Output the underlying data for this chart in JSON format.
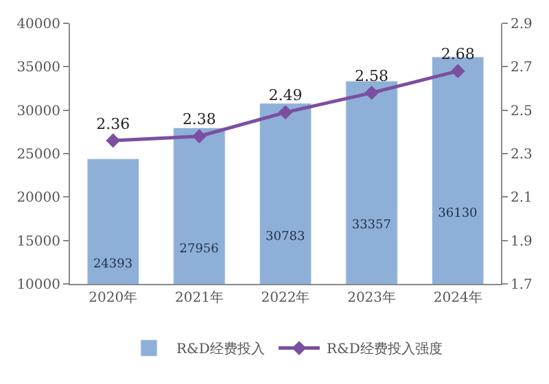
{
  "chart_data": {
    "type": "bar",
    "categories": [
      "2020年",
      "2021年",
      "2022年",
      "2023年",
      "2024年"
    ],
    "series": [
      {
        "name": "R&D经费投入",
        "color": "#8eb0d8",
        "values": [
          24393,
          27956,
          30783,
          33357,
          36130
        ]
      },
      {
        "name": "R&D经费投入强度",
        "type": "line",
        "axis": "y2",
        "color": "#7b4fa0",
        "marker": "diamond",
        "values": [
          2.36,
          2.38,
          2.49,
          2.58,
          2.68
        ]
      }
    ],
    "ylim": [
      10000,
      40000
    ],
    "yticks": [
      10000,
      15000,
      20000,
      25000,
      30000,
      35000,
      40000
    ],
    "y2lim": [
      1.7,
      2.9
    ],
    "y2ticks": [
      {
        "value": 1.7,
        "label": "1.7"
      },
      {
        "value": 1.9,
        "label": "1.9"
      },
      {
        "value": 2.1,
        "label": "2.1"
      },
      {
        "value": 2.3,
        "label": "2.3"
      },
      {
        "value": 2.5,
        "label": "2.5"
      },
      {
        "value": 2.7,
        "label": "2.7"
      },
      {
        "value": 2.9,
        "label": "2.9"
      }
    ],
    "data_labels": true,
    "legend": "bottom"
  }
}
